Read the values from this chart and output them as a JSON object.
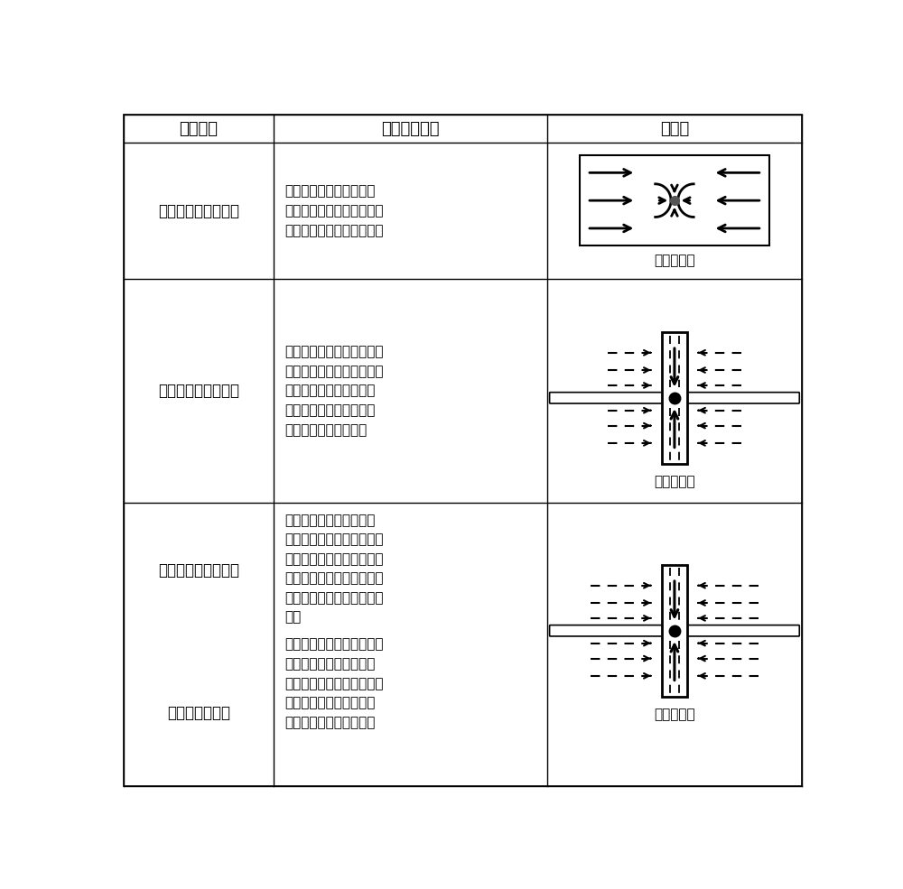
{
  "col1_header": "流动阶段",
  "col2_header": "流动阶段描述",
  "col3_header": "示意图",
  "rows": [
    {
      "stage": "水相第一线性流阶段",
      "description": [
        "单相压裂液沿裂缝线性流",
        "向井筒，该流动阶段的观测",
        "需基于高频率采集的数据。"
      ],
      "diagram_type": "cross_section",
      "caption": "（截面图）"
    },
    {
      "stage": "水相第二线性流阶段",
      "description": [
        "基质气体流入裂缝后，气相",
        "饱和度不断增加，气体和压",
        "裂液为裂缝内的主要流动",
        "相，水相第一边界流被打",
        "断，第二线性流出现。"
      ],
      "diagram_type": "plan_view",
      "caption": "（俯视图）",
      "arrow_style": "solid_short"
    },
    {
      "stage": "水相边界控制流阶段",
      "description": [
        "裂缝内大部分压裂液已排",
        "出，缝内水相饱和度降低、",
        "产量降低，气相主导裂缝流",
        "动。由于缝内有限体积的压",
        "裂液，压裂液表现出衰竭特",
        "征。"
      ],
      "diagram_type": "plan_view",
      "caption": "（俯视图）",
      "arrow_style": "dashed_long"
    },
    {
      "stage": "气相线性流阶段",
      "description": [
        "基质内气体线性流向裂缝，",
        "该流动阶段与水相第二边",
        "界控制流几乎同时发生，气",
        "相线性流为页岩气藏生产",
        "阶段的第一个流动特征。"
      ],
      "diagram_type": "none"
    }
  ],
  "background_color": "#ffffff",
  "text_color": "#000000",
  "font_size": 12,
  "header_font_size": 13
}
